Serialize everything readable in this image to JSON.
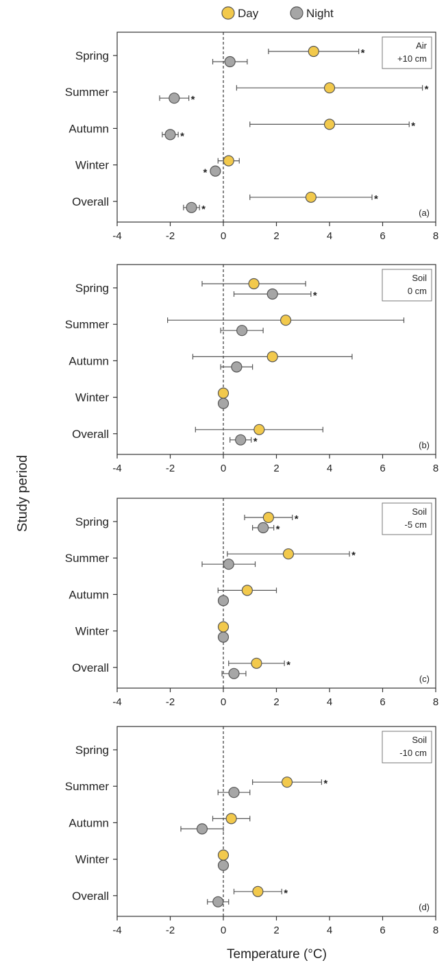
{
  "legend": [
    {
      "label": "Day",
      "color": "#F2C94C"
    },
    {
      "label": "Night",
      "color": "#A6A6A6"
    }
  ],
  "ylabel": "Study period",
  "xlabel": "Temperature (°C)",
  "chart_data": [
    {
      "type": "scatter",
      "panel_label": "(a)",
      "box_label": [
        "Air",
        "+10 cm"
      ],
      "categories": [
        "Spring",
        "Summer",
        "Autumn",
        "Winter",
        "Overall"
      ],
      "xlim": [
        -4,
        8
      ],
      "xticks": [
        -4,
        -2,
        0,
        2,
        4,
        6,
        8
      ],
      "reference_line": 0,
      "series": [
        {
          "name": "Day",
          "values": [
            {
              "category": "Spring",
              "x": 3.4,
              "low": 1.7,
              "high": 5.1,
              "significant": true
            },
            {
              "category": "Summer",
              "x": 4.0,
              "low": 0.5,
              "high": 7.5,
              "significant": true
            },
            {
              "category": "Autumn",
              "x": 4.0,
              "low": 1.0,
              "high": 7.0,
              "significant": true
            },
            {
              "category": "Winter",
              "x": 0.2,
              "low": -0.2,
              "high": 0.6,
              "significant": false
            },
            {
              "category": "Overall",
              "x": 3.3,
              "low": 1.0,
              "high": 5.6,
              "significant": true
            }
          ]
        },
        {
          "name": "Night",
          "values": [
            {
              "category": "Spring",
              "x": 0.25,
              "low": -0.4,
              "high": 0.9,
              "significant": false
            },
            {
              "category": "Summer",
              "x": -1.85,
              "low": -2.4,
              "high": -1.3,
              "significant": true
            },
            {
              "category": "Autumn",
              "x": -2.0,
              "low": -2.3,
              "high": -1.7,
              "significant": true
            },
            {
              "category": "Winter",
              "x": -0.3,
              "low": -0.3,
              "high": -0.3,
              "significant": true,
              "star_side": "left"
            },
            {
              "category": "Overall",
              "x": -1.2,
              "low": -1.5,
              "high": -0.9,
              "significant": true
            }
          ]
        }
      ]
    },
    {
      "type": "scatter",
      "panel_label": "(b)",
      "box_label": [
        "Soil",
        "0 cm"
      ],
      "categories": [
        "Spring",
        "Summer",
        "Autumn",
        "Winter",
        "Overall"
      ],
      "xlim": [
        -4,
        8
      ],
      "xticks": [
        -4,
        -2,
        0,
        2,
        4,
        6,
        8
      ],
      "reference_line": 0,
      "series": [
        {
          "name": "Day",
          "values": [
            {
              "category": "Spring",
              "x": 1.15,
              "low": -0.8,
              "high": 3.1,
              "significant": false
            },
            {
              "category": "Summer",
              "x": 2.35,
              "low": -2.1,
              "high": 6.8,
              "significant": false
            },
            {
              "category": "Autumn",
              "x": 1.85,
              "low": -1.15,
              "high": 4.85,
              "significant": false
            },
            {
              "category": "Winter",
              "x": 0.0,
              "low": 0.0,
              "high": 0.0,
              "significant": false
            },
            {
              "category": "Overall",
              "x": 1.35,
              "low": -1.05,
              "high": 3.75,
              "significant": false
            }
          ]
        },
        {
          "name": "Night",
          "values": [
            {
              "category": "Spring",
              "x": 1.85,
              "low": 0.4,
              "high": 3.3,
              "significant": true
            },
            {
              "category": "Summer",
              "x": 0.7,
              "low": -0.1,
              "high": 1.5,
              "significant": false
            },
            {
              "category": "Autumn",
              "x": 0.5,
              "low": -0.1,
              "high": 1.1,
              "significant": false
            },
            {
              "category": "Winter",
              "x": 0.0,
              "low": 0.0,
              "high": 0.0,
              "significant": false
            },
            {
              "category": "Overall",
              "x": 0.65,
              "low": 0.25,
              "high": 1.05,
              "significant": true
            }
          ]
        }
      ]
    },
    {
      "type": "scatter",
      "panel_label": "(c)",
      "box_label": [
        "Soil",
        "-5 cm"
      ],
      "categories": [
        "Spring",
        "Summer",
        "Autumn",
        "Winter",
        "Overall"
      ],
      "xlim": [
        -4,
        8
      ],
      "xticks": [
        -4,
        -2,
        0,
        2,
        4,
        6,
        8
      ],
      "reference_line": 0,
      "series": [
        {
          "name": "Day",
          "values": [
            {
              "category": "Spring",
              "x": 1.7,
              "low": 0.8,
              "high": 2.6,
              "significant": true
            },
            {
              "category": "Summer",
              "x": 2.45,
              "low": 0.15,
              "high": 4.75,
              "significant": true
            },
            {
              "category": "Autumn",
              "x": 0.9,
              "low": -0.2,
              "high": 2.0,
              "significant": false
            },
            {
              "category": "Winter",
              "x": 0.0,
              "low": 0.0,
              "high": 0.0,
              "significant": false
            },
            {
              "category": "Overall",
              "x": 1.25,
              "low": 0.2,
              "high": 2.3,
              "significant": true
            }
          ]
        },
        {
          "name": "Night",
          "values": [
            {
              "category": "Spring",
              "x": 1.5,
              "low": 1.1,
              "high": 1.9,
              "significant": true
            },
            {
              "category": "Summer",
              "x": 0.2,
              "low": -0.8,
              "high": 1.2,
              "significant": false
            },
            {
              "category": "Autumn",
              "x": 0.0,
              "low": -0.1,
              "high": 0.1,
              "significant": false
            },
            {
              "category": "Winter",
              "x": 0.0,
              "low": 0.0,
              "high": 0.0,
              "significant": false
            },
            {
              "category": "Overall",
              "x": 0.4,
              "low": -0.05,
              "high": 0.85,
              "significant": false
            }
          ]
        }
      ]
    },
    {
      "type": "scatter",
      "panel_label": "(d)",
      "box_label": [
        "Soil",
        "-10 cm"
      ],
      "categories": [
        "Spring",
        "Summer",
        "Autumn",
        "Winter",
        "Overall"
      ],
      "xlim": [
        -4,
        8
      ],
      "xticks": [
        -4,
        -2,
        0,
        2,
        4,
        6,
        8
      ],
      "reference_line": 0,
      "series": [
        {
          "name": "Day",
          "values": [
            {
              "category": "Summer",
              "x": 2.4,
              "low": 1.1,
              "high": 3.7,
              "significant": true
            },
            {
              "category": "Autumn",
              "x": 0.3,
              "low": -0.4,
              "high": 1.0,
              "significant": false
            },
            {
              "category": "Winter",
              "x": 0.0,
              "low": 0.0,
              "high": 0.0,
              "significant": false
            },
            {
              "category": "Overall",
              "x": 1.3,
              "low": 0.4,
              "high": 2.2,
              "significant": true
            }
          ]
        },
        {
          "name": "Night",
          "values": [
            {
              "category": "Summer",
              "x": 0.4,
              "low": -0.2,
              "high": 1.0,
              "significant": false
            },
            {
              "category": "Autumn",
              "x": -0.8,
              "low": -1.6,
              "high": 0.0,
              "significant": false
            },
            {
              "category": "Winter",
              "x": 0.0,
              "low": 0.0,
              "high": 0.0,
              "significant": false
            },
            {
              "category": "Overall",
              "x": -0.2,
              "low": -0.6,
              "high": 0.2,
              "significant": false
            }
          ]
        }
      ]
    }
  ]
}
